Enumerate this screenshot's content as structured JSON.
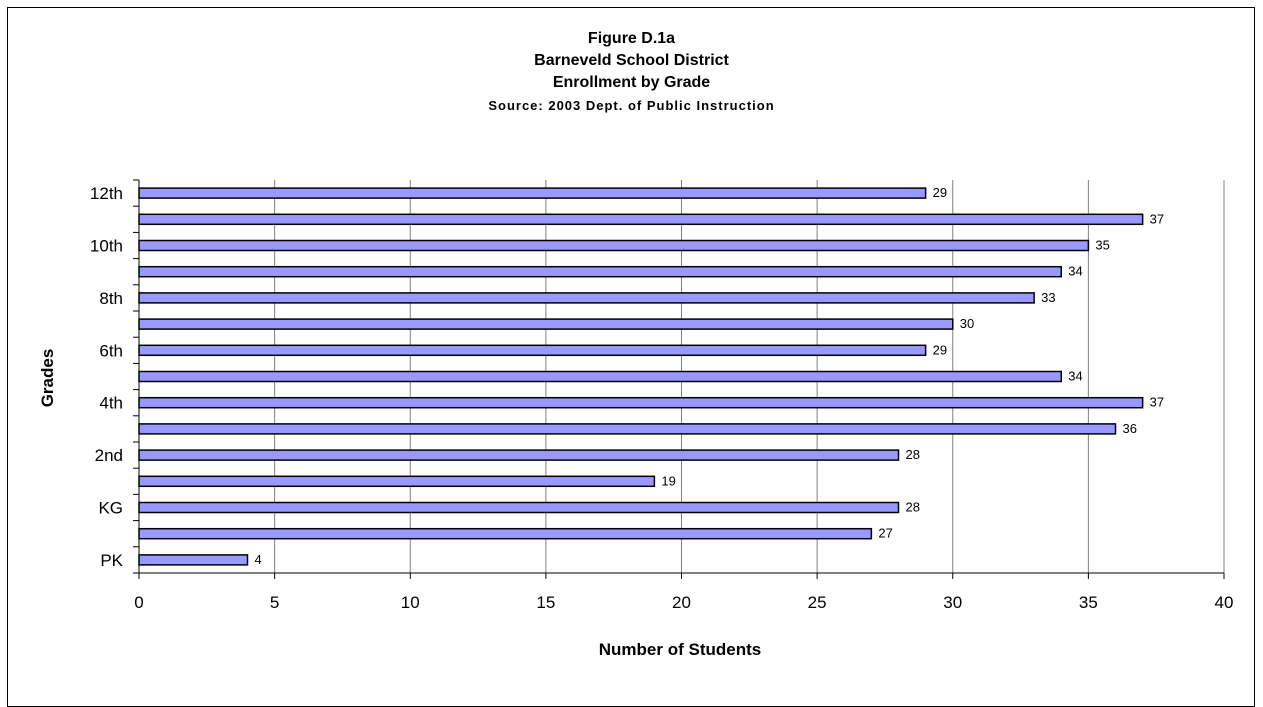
{
  "chart_data": {
    "type": "bar",
    "orientation": "horizontal",
    "title": "Figure D.1a",
    "subtitle_lines": [
      "Barneveld School District",
      "Enrollment by Grade"
    ],
    "source": "Source:  2003 Dept. of Public Instruction",
    "xlabel": "Number of Students",
    "ylabel": "Grades",
    "xlim": [
      0,
      40
    ],
    "x_ticks": [
      0,
      5,
      10,
      15,
      20,
      25,
      30,
      35,
      40
    ],
    "categories": [
      "PK",
      "",
      "KG",
      "",
      "2nd",
      "",
      "4th",
      "",
      "6th",
      "",
      "8th",
      "",
      "10th",
      "",
      "12th"
    ],
    "values": [
      4,
      27,
      28,
      19,
      28,
      36,
      37,
      34,
      29,
      30,
      33,
      34,
      35,
      37,
      29
    ],
    "bar_color": "#9999ff",
    "grid": "vertical",
    "legend": "none"
  }
}
